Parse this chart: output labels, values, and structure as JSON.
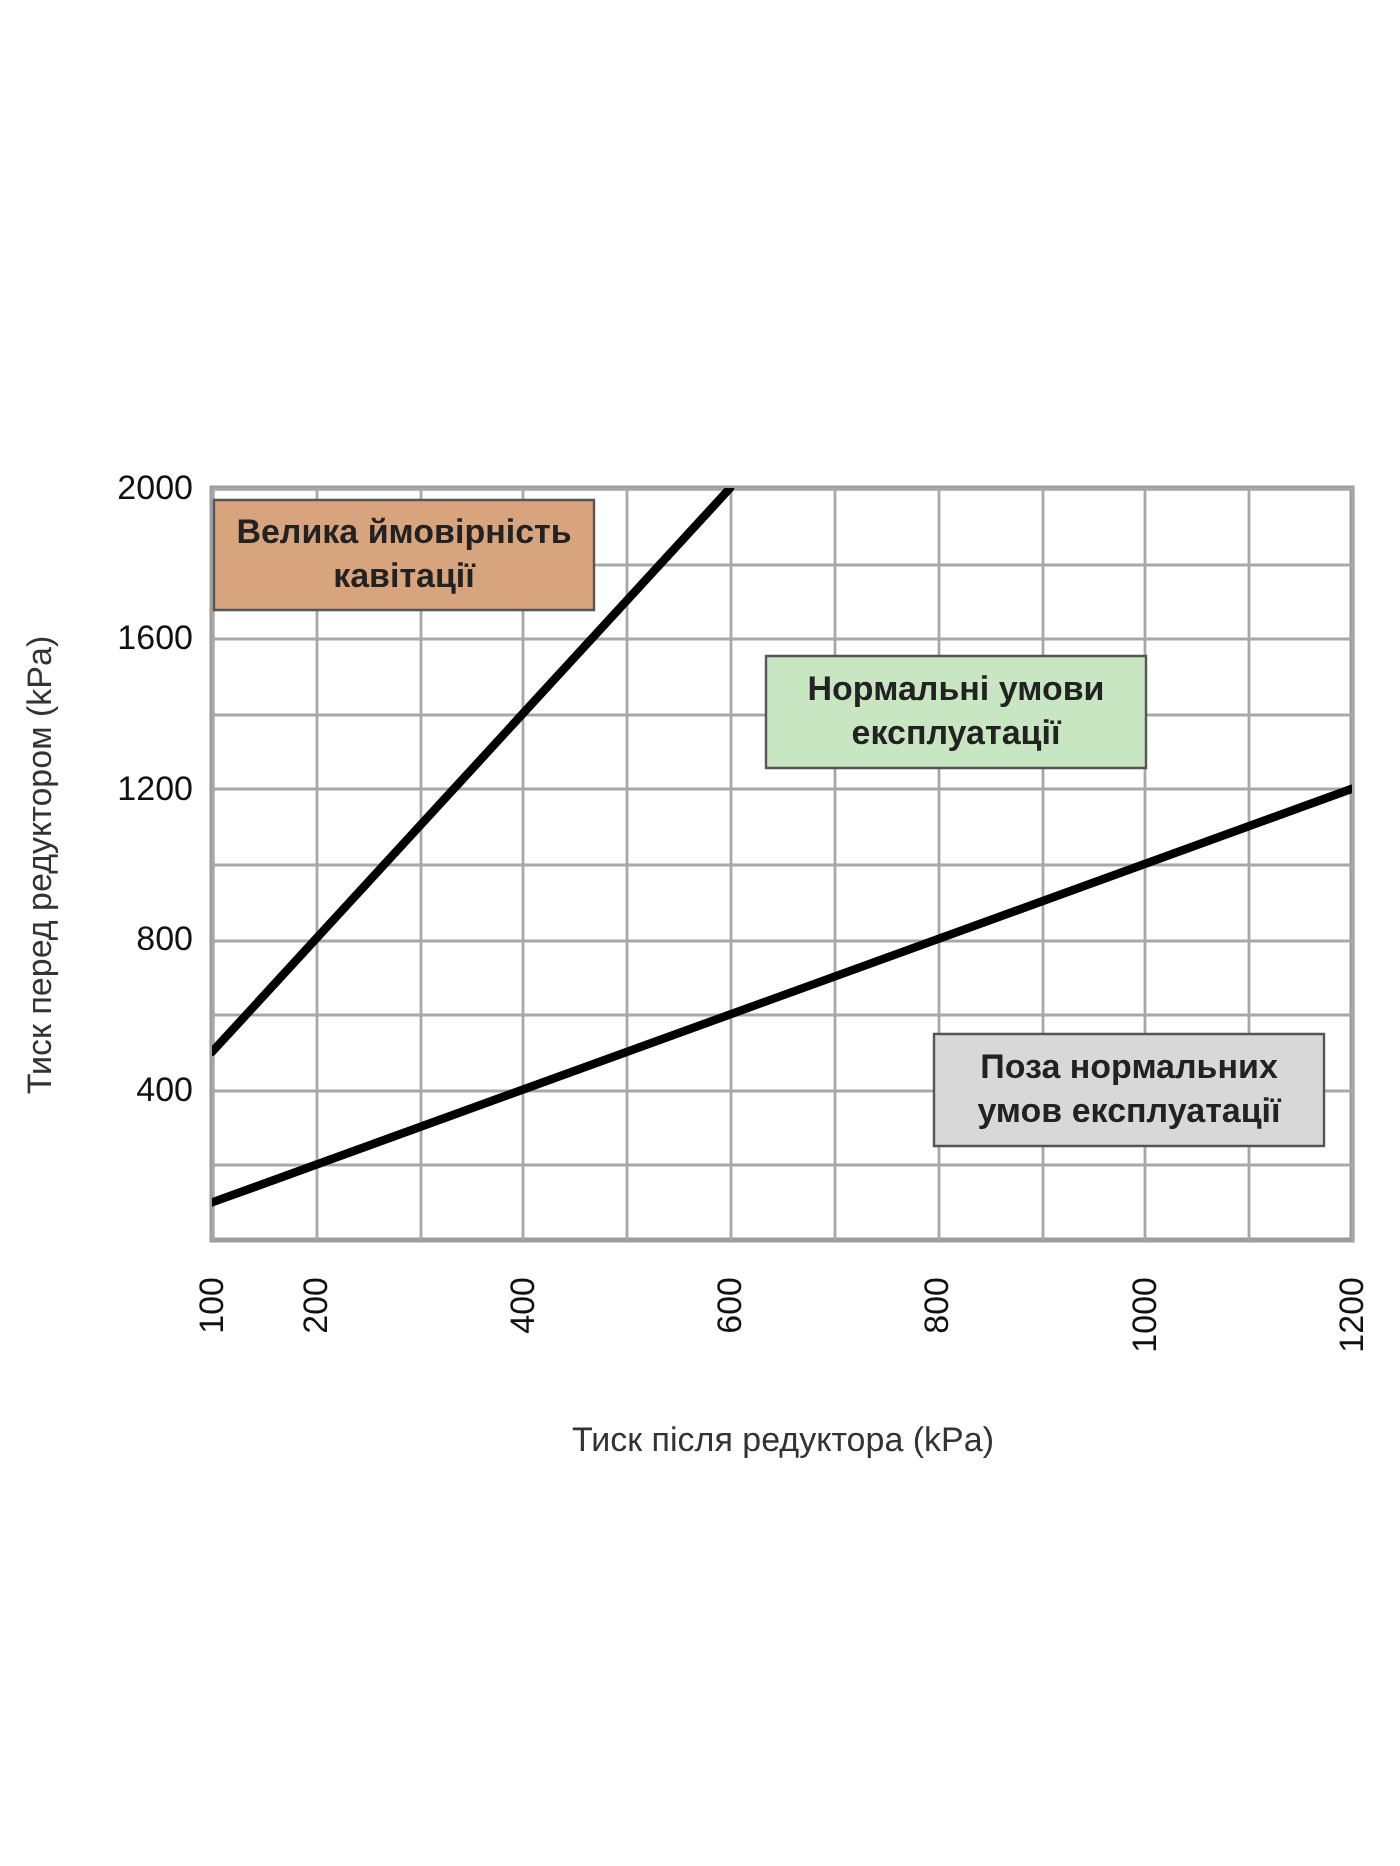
{
  "chart_data": {
    "type": "line",
    "xlabel": "Тиск після редуктора (kPa)",
    "ylabel": "Тиск перед редуктором (kPa)",
    "series": [
      {
        "color": "#000000",
        "x": [
          100,
          600
        ],
        "values": [
          500,
          2000
        ]
      },
      {
        "color": "#000000",
        "x": [
          100,
          1200
        ],
        "values": [
          100,
          1200
        ]
      }
    ],
    "xlim": [
      100,
      1200
    ],
    "ylim": [
      0,
      2000
    ],
    "xticks": [
      100,
      200,
      {
        "value": 300,
        "label": null
      },
      400,
      {
        "value": 500,
        "label": null
      },
      600,
      {
        "value": 700,
        "label": null
      },
      800,
      {
        "value": 900,
        "label": null
      },
      1000,
      {
        "value": 1100,
        "label": null
      },
      1200
    ],
    "yticks": [
      {
        "value": 200,
        "label": null
      },
      400,
      {
        "value": 600,
        "label": null
      },
      800,
      {
        "value": 1000,
        "label": null
      },
      1200,
      {
        "value": 1400,
        "label": null
      },
      1600,
      {
        "value": 1800,
        "label": null
      },
      2000
    ],
    "grid": true,
    "legend": false,
    "marker": "none",
    "line_style": "solid",
    "annotations": [
      "Велика ймовірність\nкавітації",
      "Нормальні умови\nексплуатації",
      "Поза нормальних\nумов експлуатації"
    ]
  }
}
